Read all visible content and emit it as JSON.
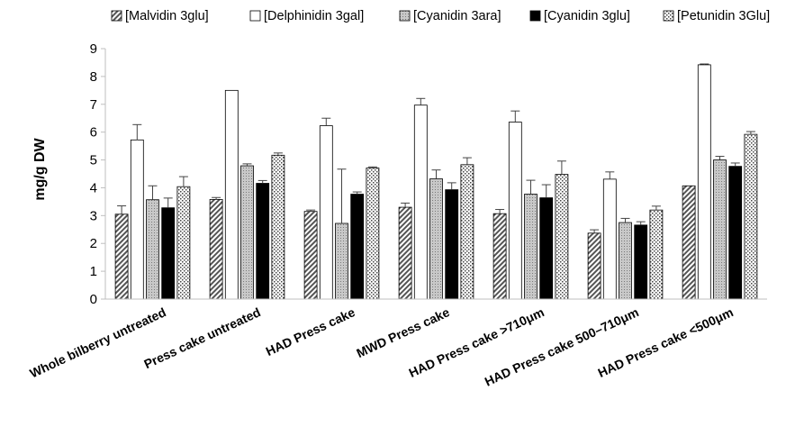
{
  "chart_data": {
    "type": "bar",
    "ylabel": "mg/g DW",
    "ylim": [
      0,
      9
    ],
    "yticks": [
      0,
      1,
      2,
      3,
      4,
      5,
      6,
      7,
      8,
      9
    ],
    "grid": false,
    "legend_position": "top",
    "categories": [
      "Whole bilberry untreated",
      "Press cake untreated",
      "HAD Press cake",
      "MWD Press cake",
      "HAD Press cake >710μm",
      "HAD Press cake 500–710μm",
      "HAD Press cake <500μm"
    ],
    "series": [
      {
        "name": "[Malvidin 3glu]",
        "pattern": "diagonal-hatch",
        "values": [
          3.05,
          3.58,
          3.15,
          3.3,
          3.07,
          2.37,
          4.07
        ],
        "errors": [
          0.3,
          0.07,
          0.05,
          0.15,
          0.15,
          0.12,
          0.0
        ]
      },
      {
        "name": "[Delphinidin 3gal]",
        "pattern": "white",
        "values": [
          5.72,
          7.5,
          6.23,
          6.97,
          6.36,
          4.31,
          8.42
        ],
        "errors": [
          0.55,
          0.0,
          0.27,
          0.24,
          0.4,
          0.26,
          0.03
        ]
      },
      {
        "name": "[Cyanidin 3ara]",
        "pattern": "light-dots",
        "values": [
          3.57,
          4.79,
          2.72,
          4.32,
          3.77,
          2.75,
          5.0
        ],
        "errors": [
          0.5,
          0.07,
          1.95,
          0.32,
          0.5,
          0.15,
          0.13
        ]
      },
      {
        "name": "[Cyanidin 3glu]",
        "pattern": "black",
        "values": [
          3.28,
          4.16,
          3.77,
          3.93,
          3.64,
          2.66,
          4.77
        ],
        "errors": [
          0.35,
          0.1,
          0.08,
          0.25,
          0.47,
          0.12,
          0.12
        ]
      },
      {
        "name": "[Petunidin 3Glu]",
        "pattern": "checker-dots",
        "values": [
          4.04,
          5.17,
          4.71,
          4.83,
          4.48,
          3.2,
          5.92
        ],
        "errors": [
          0.36,
          0.08,
          0.04,
          0.25,
          0.48,
          0.14,
          0.1
        ]
      }
    ]
  }
}
